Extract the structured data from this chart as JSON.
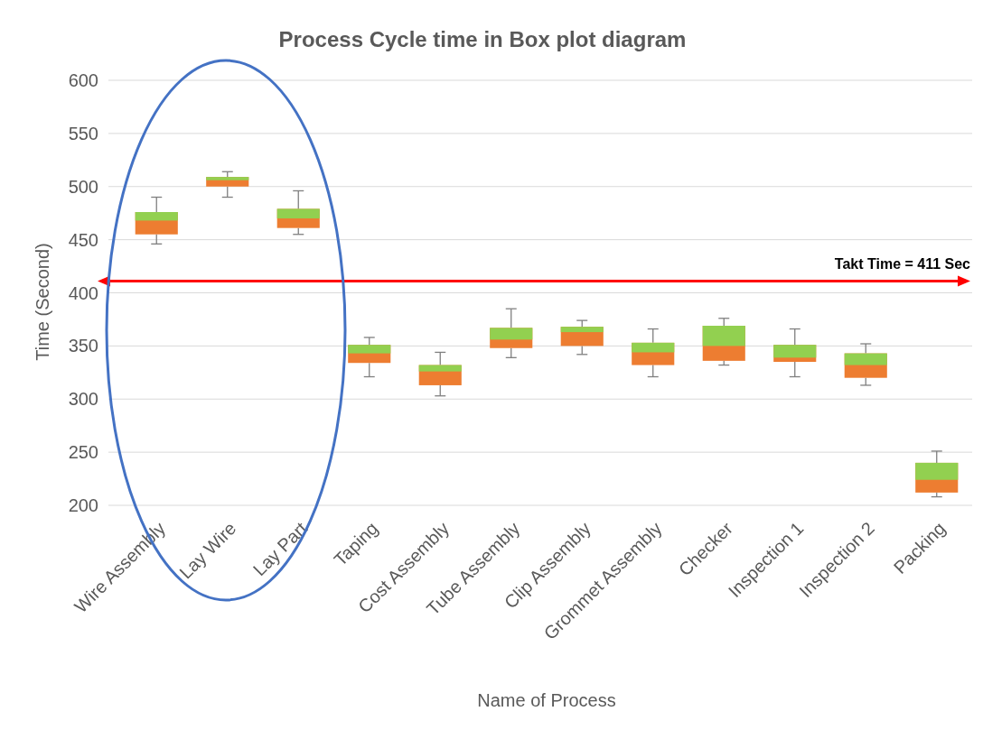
{
  "chart_data": {
    "type": "box",
    "title": "Process Cycle time in Box plot diagram",
    "xlabel": "Name of Process",
    "ylabel": "Time (Second)",
    "categories": [
      "Wire Assembly",
      "Lay Wire",
      "Lay Part",
      "Taping",
      "Cost Assembly",
      "Tube Assembly",
      "Clip Assembly",
      "Grommet Assembly",
      "Checker",
      "Inspection 1",
      "Inspection 2",
      "Packing"
    ],
    "series": [
      {
        "color": "#ed7d31",
        "boxes": [
          {
            "low": 446,
            "q1": 455,
            "median": 468,
            "q3": 476,
            "high": 490
          },
          {
            "low": 490,
            "q1": 500,
            "median": 506,
            "q3": 509,
            "high": 514
          },
          {
            "low": 455,
            "q1": 461,
            "median": 470,
            "q3": 479,
            "high": 496
          },
          {
            "low": 321,
            "q1": 334,
            "median": 343,
            "q3": 351,
            "high": 358
          },
          {
            "low": 303,
            "q1": 313,
            "median": 326,
            "q3": 332,
            "high": 344
          },
          {
            "low": 339,
            "q1": 348,
            "median": 356,
            "q3": 367,
            "high": 385
          },
          {
            "low": 342,
            "q1": 350,
            "median": 363,
            "q3": 368,
            "high": 374
          },
          {
            "low": 321,
            "q1": 332,
            "median": 344,
            "q3": 353,
            "high": 366
          },
          {
            "low": 332,
            "q1": 336,
            "median": 350,
            "q3": 369,
            "high": 376
          },
          {
            "low": 321,
            "q1": 335,
            "median": 339,
            "q3": 351,
            "high": 366
          },
          {
            "low": 313,
            "q1": 320,
            "median": 332,
            "q3": 343,
            "high": 352
          },
          {
            "low": 208,
            "q1": 212,
            "median": 224,
            "q3": 240,
            "high": 251
          }
        ]
      }
    ],
    "ylim": [
      200,
      600
    ],
    "yticks": [
      200,
      250,
      300,
      350,
      400,
      450,
      500,
      550,
      600
    ],
    "grid": "y",
    "ref_lines": [
      {
        "axis": "y",
        "value": 411,
        "label": "Takt Time = 411 Sec",
        "color": "#ff0000"
      }
    ]
  }
}
